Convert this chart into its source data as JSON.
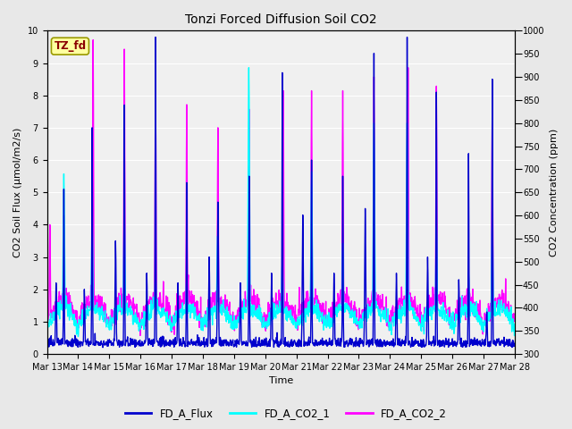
{
  "title": "Tonzi Forced Diffusion Soil CO2",
  "xlabel": "Time",
  "ylabel_left": "CO2 Soil Flux (μmol/m2/s)",
  "ylabel_right": "CO2 Concentration (ppm)",
  "ylim_left": [
    0.0,
    10.0
  ],
  "ylim_right": [
    300,
    1000
  ],
  "xtick_labels": [
    "Mar 13",
    "Mar 14",
    "Mar 15",
    "Mar 16",
    "Mar 17",
    "Mar 18",
    "Mar 19",
    "Mar 20",
    "Mar 21",
    "Mar 22",
    "Mar 23",
    "Mar 24",
    "Mar 25",
    "Mar 26",
    "Mar 27",
    "Mar 28"
  ],
  "tag_label": "TZ_fd",
  "tag_bg": "#FFFFA0",
  "tag_fg": "#8B0000",
  "fig_bg": "#E8E8E8",
  "axes_bg": "#F0F0F0",
  "flux_color": "#0000CD",
  "co2_1_color": "#00FFFF",
  "co2_2_color": "#FF00FF",
  "legend_labels": [
    "FD_A_Flux",
    "FD_A_CO2_1",
    "FD_A_CO2_2"
  ],
  "flux_lw": 1.0,
  "co2_lw": 1.0,
  "grid_color": "#FFFFFF",
  "ytick_left": [
    0.0,
    1.0,
    2.0,
    3.0,
    4.0,
    5.0,
    6.0,
    7.0,
    8.0,
    9.0,
    10.0
  ],
  "ytick_right": [
    300,
    350,
    400,
    450,
    500,
    550,
    600,
    650,
    700,
    750,
    800,
    850,
    900,
    950,
    1000
  ],
  "n_days": 15,
  "n_per_day": 96,
  "flux_baseline": 0.4,
  "co2_1_baseline": 360,
  "co2_2_baseline": 365
}
